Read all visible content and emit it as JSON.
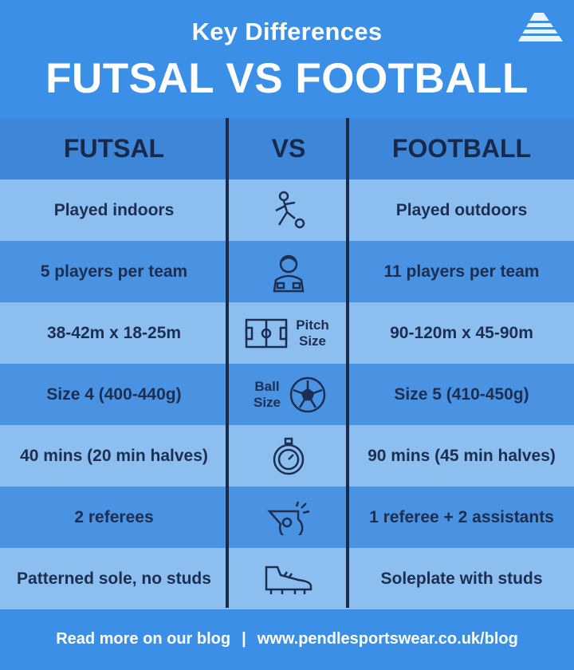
{
  "header": {
    "subtitle": "Key Differences",
    "title": "FUTSAL VS FOOTBALL",
    "logo_icon": "pyramid-logo-icon"
  },
  "columns": {
    "left": "FUTSAL",
    "middle": "VS",
    "right": "FOOTBALL"
  },
  "rows": [
    {
      "futsal": "Played indoors",
      "icon": "player-kicking-icon",
      "icon_label": "",
      "football": "Played outdoors"
    },
    {
      "futsal": "5 players per team",
      "icon": "player-icon",
      "icon_label": "",
      "football": "11 players per team"
    },
    {
      "futsal": "38-42m x 18-25m",
      "icon": "pitch-icon",
      "icon_label": "Pitch Size",
      "football": "90-120m x 45-90m"
    },
    {
      "futsal": "Size 4 (400-440g)",
      "icon": "ball-icon",
      "icon_label": "Ball Size",
      "football": "Size 5 (410-450g)"
    },
    {
      "futsal": "40 mins (20 min halves)",
      "icon": "stopwatch-icon",
      "icon_label": "",
      "football": "90 mins (45 min halves)"
    },
    {
      "futsal": "2 referees",
      "icon": "whistle-icon",
      "icon_label": "",
      "football": "1 referee + 2 assistants"
    },
    {
      "futsal": "Patterned sole, no studs",
      "icon": "boot-icon",
      "icon_label": "",
      "football": "Soleplate with studs"
    }
  ],
  "footer": {
    "text": "Read more on our blog",
    "separator": "|",
    "url": "www.pendlesportswear.co.uk/blog"
  },
  "colors": {
    "background": "#3b8fe6",
    "header_row": "#3e86d8",
    "light_row": "#8cbff0",
    "dark_row": "#4a92e2",
    "text": "#1c2f52"
  }
}
